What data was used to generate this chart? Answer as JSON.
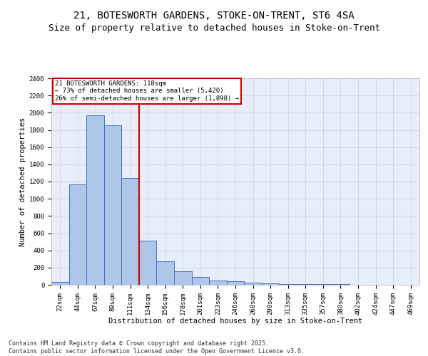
{
  "title_line1": "21, BOTESWORTH GARDENS, STOKE-ON-TRENT, ST6 4SA",
  "title_line2": "Size of property relative to detached houses in Stoke-on-Trent",
  "xlabel": "Distribution of detached houses by size in Stoke-on-Trent",
  "ylabel": "Number of detached properties",
  "categories": [
    "22sqm",
    "44sqm",
    "67sqm",
    "89sqm",
    "111sqm",
    "134sqm",
    "156sqm",
    "178sqm",
    "201sqm",
    "223sqm",
    "246sqm",
    "268sqm",
    "290sqm",
    "313sqm",
    "335sqm",
    "357sqm",
    "380sqm",
    "402sqm",
    "424sqm",
    "447sqm",
    "469sqm"
  ],
  "values": [
    30,
    1170,
    1970,
    1855,
    1240,
    515,
    270,
    155,
    90,
    48,
    40,
    25,
    15,
    10,
    5,
    5,
    5,
    2,
    2,
    2,
    2
  ],
  "bar_color": "#aec6e8",
  "bar_edge_color": "#4472c4",
  "vline_x_index": 4,
  "vline_color": "#cc0000",
  "annotation_text": "21 BOTESWORTH GARDENS: 118sqm\n← 73% of detached houses are smaller (5,420)\n26% of semi-detached houses are larger (1,898) →",
  "annotation_box_color": "#cc0000",
  "ylim": [
    0,
    2400
  ],
  "yticks": [
    0,
    200,
    400,
    600,
    800,
    1000,
    1200,
    1400,
    1600,
    1800,
    2000,
    2200,
    2400
  ],
  "grid_color": "#d0d8e8",
  "plot_bg_color": "#e8eef8",
  "footer_line1": "Contains HM Land Registry data © Crown copyright and database right 2025.",
  "footer_line2": "Contains public sector information licensed under the Open Government Licence v3.0.",
  "title_fontsize": 10,
  "subtitle_fontsize": 9,
  "axis_label_fontsize": 7.5,
  "tick_fontsize": 6.5,
  "annotation_fontsize": 6.5,
  "footer_fontsize": 6
}
